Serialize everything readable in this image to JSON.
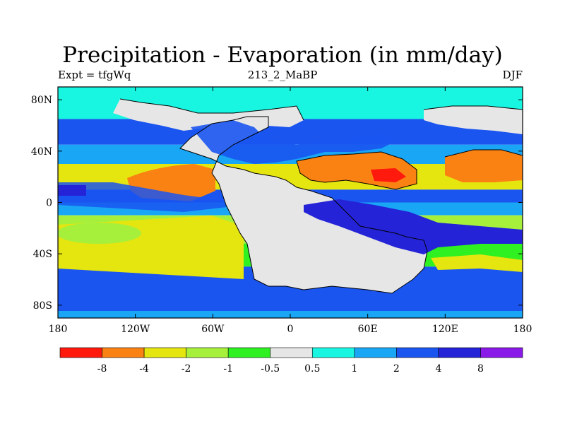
{
  "chart_data": {
    "type": "heatmap",
    "title": "Precipitation - Evaporation (in mm/day)",
    "subtitle_left": "Expt = tfgWq",
    "subtitle_center": "213_2_MaBP",
    "subtitle_right": "DJF",
    "x_tick_labels": [
      "180",
      "120W",
      "60W",
      "0",
      "60E",
      "120E",
      "180"
    ],
    "y_tick_labels": [
      "80N",
      "40N",
      "0",
      "40S",
      "80S"
    ],
    "xlim": [
      -180,
      180
    ],
    "ylim": [
      -90,
      90
    ],
    "colorbar": {
      "colors": [
        "#ff1a0d",
        "#fa8213",
        "#e5e50f",
        "#a6f03c",
        "#2ff021",
        "#e6e6e6",
        "#18f5e0",
        "#18a6f5",
        "#1a55f0",
        "#2423d8",
        "#8a1ae8"
      ],
      "labels": [
        "-8",
        "-4",
        "-2",
        "-1",
        "-0.5",
        "0.5",
        "1",
        "2",
        "4",
        "8"
      ]
    },
    "latitude_bands": [
      {
        "lat": [
          65,
          90
        ],
        "value": 0.7
      },
      {
        "lat": [
          45,
          65
        ],
        "value": 3
      },
      {
        "lat": [
          30,
          45
        ],
        "value": 1.5
      },
      {
        "lat": [
          10,
          30
        ],
        "value": -3
      },
      {
        "lat": [
          0,
          10
        ],
        "value": 3
      },
      {
        "lat": [
          -10,
          0
        ],
        "value": 1.5
      },
      {
        "lat": [
          -32,
          -10
        ],
        "value": -2
      },
      {
        "lat": [
          -50,
          -32
        ],
        "value": -0.8
      },
      {
        "lat": [
          -90,
          -50
        ],
        "value": 3
      }
    ]
  }
}
